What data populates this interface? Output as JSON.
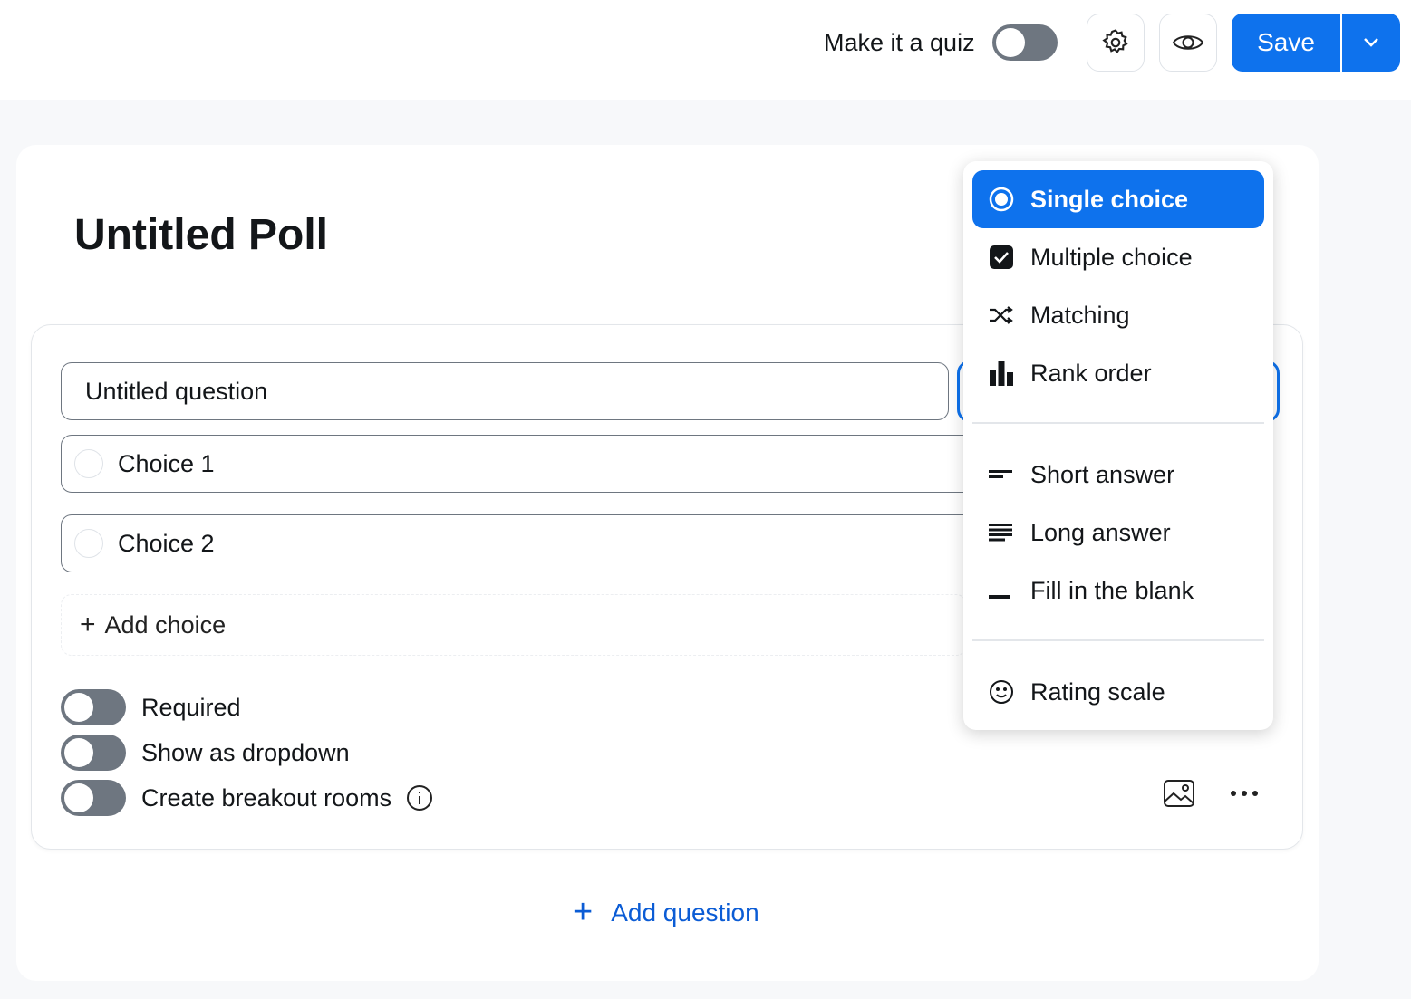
{
  "header": {
    "quiz_label": "Make it a quiz",
    "quiz_enabled": false,
    "settings_icon": "gear-icon",
    "preview_icon": "eye-icon",
    "save_label": "Save",
    "accent": "#0e72ed"
  },
  "poll": {
    "title": "Untitled Poll"
  },
  "question": {
    "placeholder": "Untitled question",
    "choices": [
      "Choice 1",
      "Choice 2"
    ],
    "add_choice": "Add choice",
    "options": [
      {
        "label": "Required",
        "on": false
      },
      {
        "label": "Show as dropdown",
        "on": false
      },
      {
        "label": "Create breakout rooms",
        "on": false
      }
    ]
  },
  "type_menu": {
    "items": [
      {
        "label": "Single choice",
        "icon": "radio-icon",
        "selected": true
      },
      {
        "label": "Multiple choice",
        "icon": "checkbox-icon"
      },
      {
        "label": "Matching",
        "icon": "shuffle-icon"
      },
      {
        "label": "Rank order",
        "icon": "bar-chart-icon"
      },
      {
        "label": "Short answer",
        "icon": "short-lines-icon"
      },
      {
        "label": "Long answer",
        "icon": "long-lines-icon"
      },
      {
        "label": "Fill in the blank",
        "icon": "blank-icon"
      },
      {
        "label": "Rating scale",
        "icon": "smiley-icon"
      }
    ]
  },
  "add_question": "Add question"
}
